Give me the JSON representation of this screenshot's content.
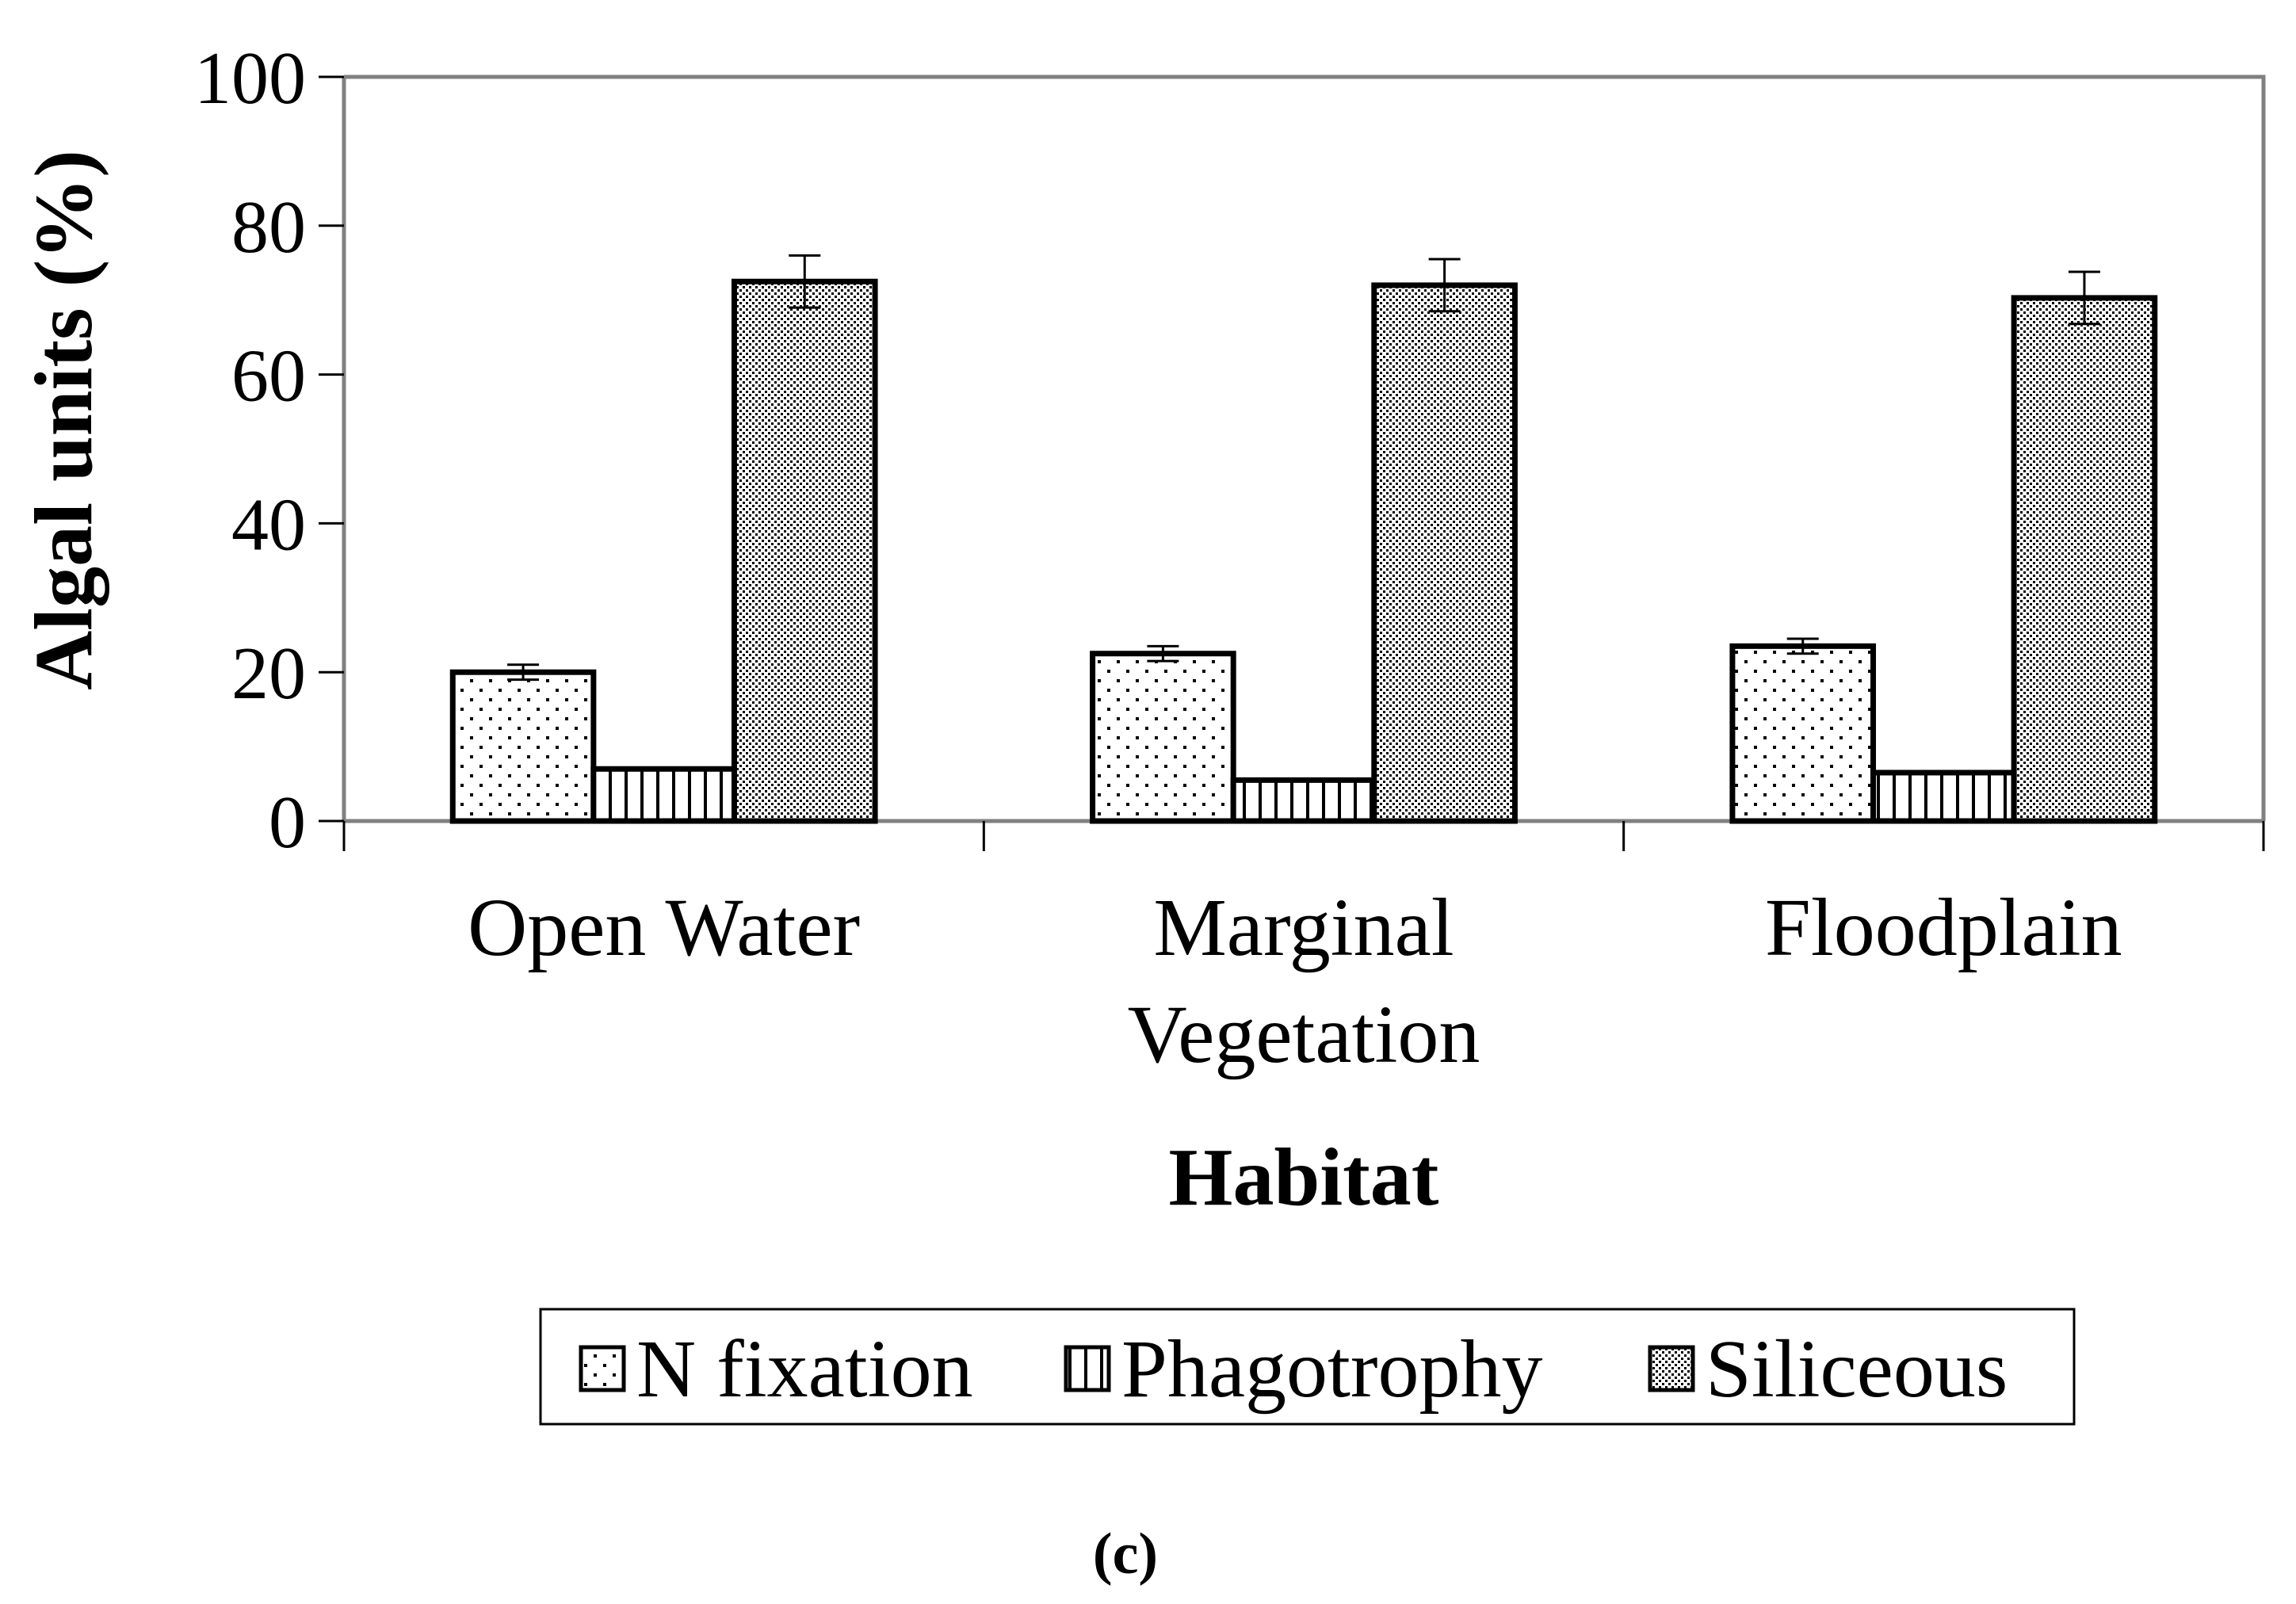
{
  "chart_data": {
    "type": "bar",
    "title": "",
    "xlabel": "Habitat",
    "ylabel": "Algal units (%)",
    "ylim": [
      0,
      100
    ],
    "yticks": [
      0,
      20,
      40,
      60,
      80,
      100
    ],
    "grid": false,
    "categories": [
      [
        "Open Water"
      ],
      [
        "Marginal",
        "Vegetation"
      ],
      [
        "Floodplain"
      ]
    ],
    "series": [
      {
        "name": "N fixation",
        "pattern": "sparse-dots",
        "values": [
          20,
          22.5,
          23.5
        ],
        "errors": [
          1,
          1,
          1
        ]
      },
      {
        "name": "Phagotrophy",
        "pattern": "vertical-lines",
        "values": [
          7,
          5.5,
          6.5
        ],
        "errors": [
          0,
          0,
          0
        ]
      },
      {
        "name": "Siliceous",
        "pattern": "dense-dots",
        "values": [
          72.5,
          72,
          70.3
        ],
        "errors": [
          3.5,
          3.5,
          3.5
        ]
      }
    ],
    "legend_position": "bottom",
    "panel_label": "(c)",
    "colors": {
      "axis": "#808080",
      "bar_stroke": "#000000",
      "bar_fill": "#ffffff",
      "text": "#000000"
    }
  }
}
